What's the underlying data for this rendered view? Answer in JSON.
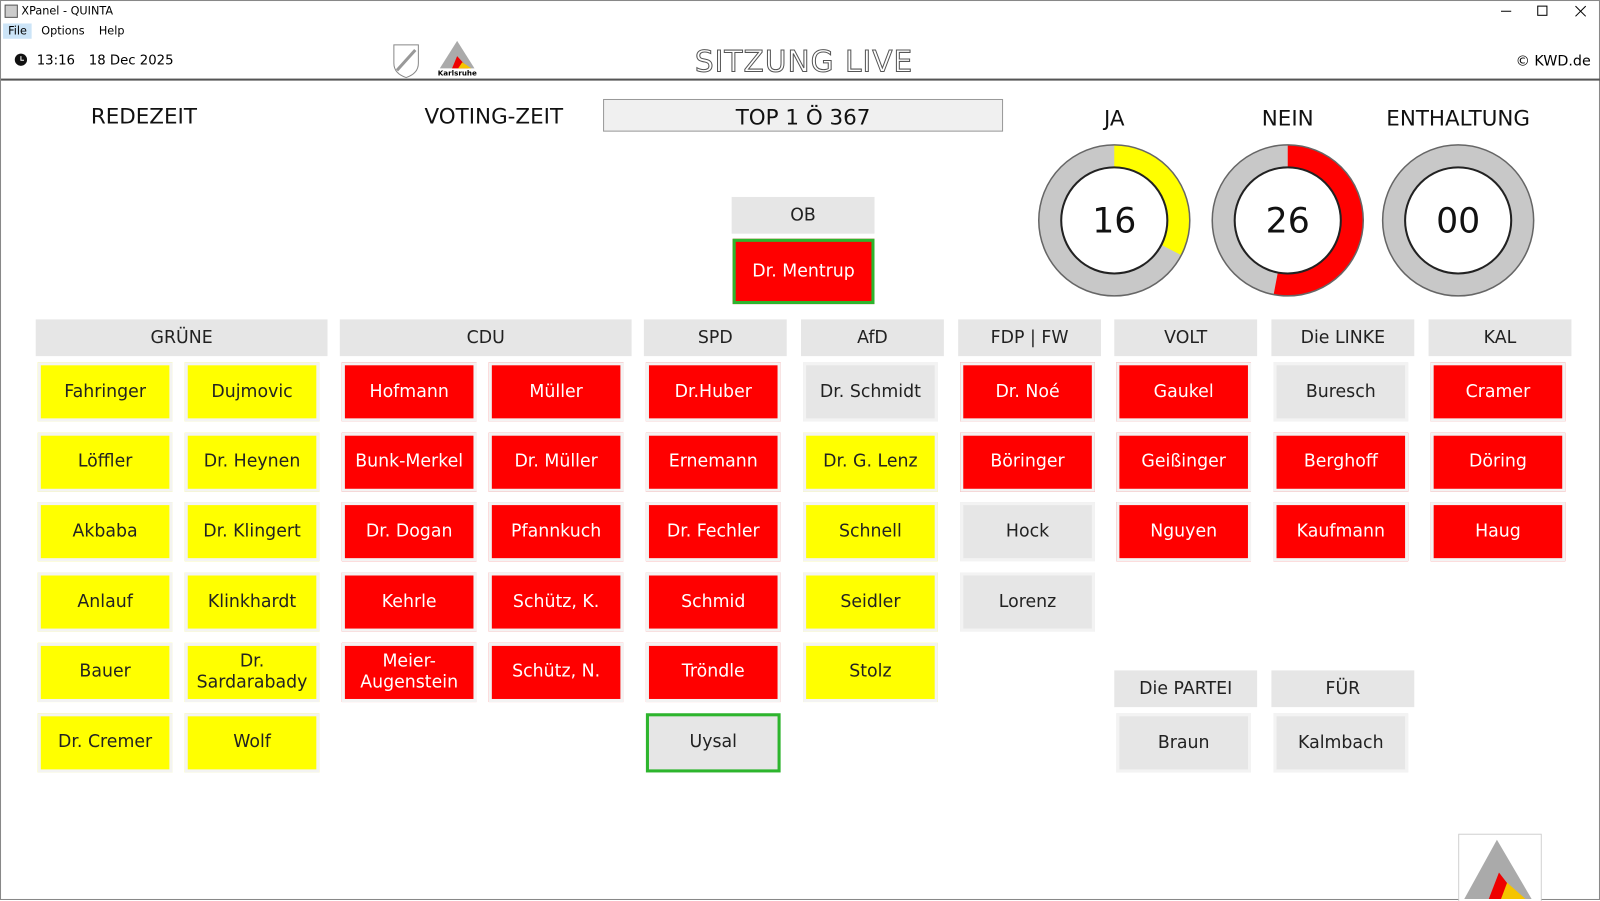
{
  "window": {
    "title": "XPanel - QUINTA",
    "menu": [
      "File",
      "Options",
      "Help"
    ]
  },
  "header": {
    "time": "13:16",
    "date": "18 Dec 2025",
    "title": "SITZUNG LIVE",
    "copyright": "© KWD.de",
    "logo_text": "Karlsruhe"
  },
  "labels": {
    "speaking_time": "REDEZEIT",
    "voting_time": "VOTING-ZEIT",
    "agenda": "TOP 1 Ö 367"
  },
  "votes": [
    {
      "label": "JA",
      "count": 16,
      "count_label": "16",
      "color": "#ffff00"
    },
    {
      "label": "NEIN",
      "count": 26,
      "count_label": "26",
      "color": "#ff0000"
    },
    {
      "label": "ENTHALTUNG",
      "count": 0,
      "count_label": "00",
      "color": "#808080"
    }
  ],
  "mayor": {
    "group": "OB",
    "name": "Dr. Mentrup",
    "color": "#ff0000",
    "highlight": true
  },
  "groups": [
    {
      "name": "GRÜNE",
      "members": [
        {
          "name": "Fahringer",
          "color": "#ffff00"
        },
        {
          "name": "Dujmovic",
          "color": "#ffff00"
        },
        {
          "name": "Löffler",
          "color": "#ffff00"
        },
        {
          "name": "Dr. Heynen",
          "color": "#ffff00"
        },
        {
          "name": "Akbaba",
          "color": "#ffff00"
        },
        {
          "name": "Dr. Klingert",
          "color": "#ffff00"
        },
        {
          "name": "Anlauf",
          "color": "#ffff00"
        },
        {
          "name": "Klinkhardt",
          "color": "#ffff00"
        },
        {
          "name": "Bauer",
          "color": "#ffff00"
        },
        {
          "name": "Dr. Sardarabady",
          "color": "#ffff00"
        },
        {
          "name": "Dr. Cremer",
          "color": "#ffff00"
        },
        {
          "name": "Wolf",
          "color": "#ffff00"
        }
      ]
    },
    {
      "name": "CDU",
      "members": [
        {
          "name": "Hofmann",
          "color": "#ff0000"
        },
        {
          "name": "Müller",
          "color": "#ff0000"
        },
        {
          "name": "Bunk-Merkel",
          "color": "#ff0000"
        },
        {
          "name": "Dr. Müller",
          "color": "#ff0000"
        },
        {
          "name": "Dr. Dogan",
          "color": "#ff0000"
        },
        {
          "name": "Pfannkuch",
          "color": "#ff0000"
        },
        {
          "name": "Kehrle",
          "color": "#ff0000"
        },
        {
          "name": "Schütz, K.",
          "color": "#ff0000"
        },
        {
          "name": "Meier-Augenstein",
          "color": "#ff0000"
        },
        {
          "name": "Schütz, N.",
          "color": "#ff0000"
        }
      ]
    },
    {
      "name": "SPD",
      "members": [
        {
          "name": "Dr.Huber",
          "color": "#ff0000"
        },
        {
          "name": "Ernemann",
          "color": "#ff0000"
        },
        {
          "name": "Dr. Fechler",
          "color": "#ff0000"
        },
        {
          "name": "Schmid",
          "color": "#ff0000"
        },
        {
          "name": "Tröndle",
          "color": "#ff0000"
        },
        {
          "name": "Uysal",
          "color": "#e6e6e6",
          "highlight": true
        }
      ]
    },
    {
      "name": "AfD",
      "members": [
        {
          "name": "Dr. Schmidt",
          "color": "#e6e6e6"
        },
        {
          "name": "Dr. G. Lenz",
          "color": "#ffff00"
        },
        {
          "name": "Schnell",
          "color": "#ffff00"
        },
        {
          "name": "Seidler",
          "color": "#ffff00"
        },
        {
          "name": "Stolz",
          "color": "#ffff00"
        }
      ]
    },
    {
      "name": "FDP | FW",
      "members": [
        {
          "name": "Dr. Noé",
          "color": "#ff0000"
        },
        {
          "name": "Böringer",
          "color": "#ff0000"
        },
        {
          "name": "Hock",
          "color": "#e6e6e6"
        },
        {
          "name": "Lorenz",
          "color": "#e6e6e6"
        }
      ]
    },
    {
      "name": "VOLT",
      "members": [
        {
          "name": "Gaukel",
          "color": "#ff0000"
        },
        {
          "name": "Geißinger",
          "color": "#ff0000"
        },
        {
          "name": "Nguyen",
          "color": "#ff0000"
        }
      ]
    },
    {
      "name": "Die LINKE",
      "members": [
        {
          "name": "Buresch",
          "color": "#e6e6e6"
        },
        {
          "name": "Berghoff",
          "color": "#ff0000"
        },
        {
          "name": "Kaufmann",
          "color": "#ff0000"
        }
      ]
    },
    {
      "name": "KAL",
      "members": [
        {
          "name": "Cramer",
          "color": "#ff0000"
        },
        {
          "name": "Döring",
          "color": "#ff0000"
        },
        {
          "name": "Haug",
          "color": "#ff0000"
        }
      ]
    },
    {
      "name": "Die PARTEI",
      "members": [
        {
          "name": "Braun",
          "color": "#e6e6e6"
        }
      ]
    },
    {
      "name": "FÜR",
      "members": [
        {
          "name": "Kalmbach",
          "color": "#e6e6e6"
        }
      ]
    }
  ]
}
